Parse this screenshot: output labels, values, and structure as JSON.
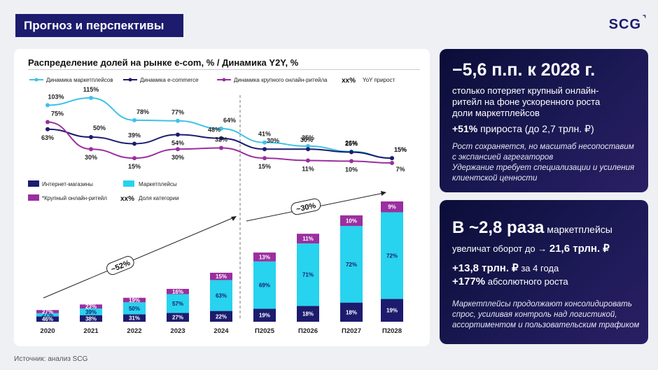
{
  "header": {
    "title": "Прогноз и перспективы",
    "logo": "SCG",
    "logo_mark": "⌝"
  },
  "source": "Источник: анализ SCG",
  "colors": {
    "navy": "#1c1b6e",
    "marketplaces": "#27d3ee",
    "ecom": "#1c1b6e",
    "retailer": "#9b2fa0",
    "cyan_line": "#3ec3e6",
    "navy_line": "#1c1b6e",
    "purple_line": "#9b2fa0"
  },
  "chart_data": [
    {
      "type": "line",
      "title": "Распределение долей на рынке e-com, % / Динамика Y2Y, %",
      "categories": [
        "2020",
        "2021",
        "2022",
        "2023",
        "2024",
        "П2025",
        "П2026",
        "П2027",
        "П2028"
      ],
      "series": [
        {
          "name": "Динамика маркетплейсов",
          "values": [
            103,
            115,
            78,
            77,
            64,
            41,
            35,
            26,
            15
          ],
          "labels": [
            "103%",
            "115%",
            "78%",
            "77%",
            "64%",
            "41%",
            "35%",
            "26%",
            "15%"
          ]
        },
        {
          "name": "Динамика e-commerce",
          "values": [
            63,
            50,
            39,
            54,
            48,
            30,
            30,
            25,
            15
          ],
          "labels": [
            "63%",
            "50%",
            "39%",
            "54%",
            "48%",
            "30%",
            "30%",
            "25%",
            "15%"
          ]
        },
        {
          "name": "Динамика крупного онлайн-ритейла",
          "values": [
            75,
            30,
            15,
            30,
            32,
            15,
            11,
            10,
            7
          ],
          "labels": [
            "75%",
            "30%",
            "15%",
            "30%",
            "32%",
            "15%",
            "11%",
            "10%",
            "7%"
          ]
        }
      ],
      "legend_extra": {
        "marker": "xx%",
        "text": "YoY прирост"
      }
    },
    {
      "type": "bar",
      "stacked": true,
      "categories": [
        "2020",
        "2021",
        "2022",
        "2023",
        "2024",
        "П2025",
        "П2026",
        "П2027",
        "П2028"
      ],
      "series": [
        {
          "name": "Интернет-магазины",
          "values": [
            46,
            38,
            31,
            27,
            22,
            19,
            18,
            18,
            19
          ]
        },
        {
          "name": "Маркетплейсы",
          "values": [
            27,
            39,
            50,
            57,
            63,
            69,
            71,
            72,
            72
          ]
        },
        {
          "name": "*Крупный онлайн-ритейл",
          "values": [
            27,
            23,
            19,
            16,
            15,
            13,
            11,
            10,
            9
          ]
        }
      ],
      "legend_extra": {
        "marker": "xx%",
        "text": "Доля категории"
      },
      "annotations": [
        "~52%",
        "~30%"
      ]
    }
  ],
  "panel1": {
    "headline": "−5,6 п.п. к 2028 г.",
    "body": [
      "столько потеряет крупный онлайн-",
      "ритейл на фоне ускоренного роста",
      "доли маркетплейсов"
    ],
    "stat_bold": "+51%",
    "stat_rest": " прироста (до 2,7 трлн. ₽)",
    "note": [
      "Рост сохраняется, но масштаб несопоставим",
      "с экспансией агрегаторов",
      "Удержание требует специализации и усиления",
      "клиентской ценности"
    ]
  },
  "panel2": {
    "headline": "В ~2,8 раза",
    "headline_rest": " маркетплейсы",
    "line2_pre": "увеличат оборот до → ",
    "line2_bold": "21,6 трлн. ₽",
    "stat1_bold": "+13,8 трлн. ₽",
    "stat1_rest": " за 4 года",
    "stat2_bold": "+177%",
    "stat2_rest": " абсолютного роста",
    "note": [
      "Маркетплейсы продолжают консолидировать",
      "спрос, усиливая контроль над логистикой,",
      "ассортиментом и пользовательским трафиком"
    ]
  }
}
